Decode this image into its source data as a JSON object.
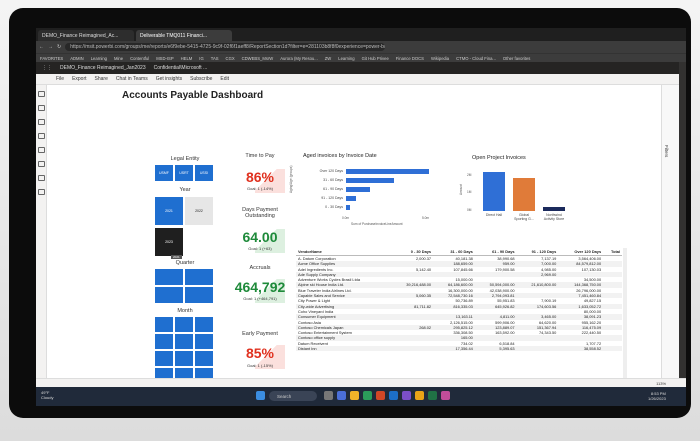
{
  "browser": {
    "tabs": [
      "DEMO_Finance Reimagined_Ac...",
      "Deliverable TMQ011 Financi..."
    ],
    "url": "https://msit.powerbi.com/groups/me/reports/e6f9ebe-5415-4725-9c9f-02f6f1aeff8/ReportSection1d?filter=e=281103b8f8f0experience=power-bi",
    "favorites": [
      "FAVORITES",
      "ADMIN",
      "Learning",
      "Mine",
      "Contentful",
      "MSD-ISP",
      "HELM",
      "IG",
      "TAS",
      "CGX",
      "CDWEBS_MsrW",
      "Aurora (My Resou...",
      "ZW",
      "Learning",
      "Git Hub Privee",
      "Finance DOCS",
      "Wikipedia",
      "CTMO - Cloud Fina...",
      "Other favorites"
    ]
  },
  "pbi": {
    "app_title": "DEMO_Finance Reimagined_Jan2023",
    "confidential": "Confidential\\Microsoft ...",
    "toolbar": [
      "File",
      "Export",
      "Share",
      "Chat in Teams",
      "Get insights",
      "Subscribe",
      "Edit"
    ],
    "filters_label": "Filters"
  },
  "dashboard": {
    "title": "Accounts Payable Dashboard",
    "legal_entity": {
      "label": "Legal Entity",
      "items": [
        "USMF",
        "USRT",
        "USSI"
      ]
    },
    "year": {
      "label": "Year",
      "items": [
        "2021",
        "2022",
        "2023"
      ],
      "tooltip": "2021"
    },
    "quarter": {
      "label": "Quarter"
    },
    "month": {
      "label": "Month"
    },
    "kpis": [
      {
        "title": "Time to Pay",
        "value": "86%",
        "goal": "Goal: 1 (-14%)",
        "color": "#e0301e",
        "bg": "#fbe0dd"
      },
      {
        "title": "Days Payment Outstanding",
        "value": "64.00",
        "goal": "Goal: 1 (+63)",
        "color": "#1e8a3a",
        "bg": "#ddf0e0"
      },
      {
        "title": "Accruals",
        "value": "464,792",
        "goal": "Goal: 1 (+464,791)",
        "color": "#1e8a3a",
        "bg": "#ddf0e0"
      },
      {
        "title": "Early Payment",
        "value": "85%",
        "goal": "Goal: 1 (-15%)",
        "color": "#e0301e",
        "bg": "#fbe0dd"
      }
    ]
  },
  "colors": {
    "accent": "#1f6fd0",
    "bar_blue": "#2f6fd6",
    "bar_orange": "#e07b39",
    "bar_navy": "#1b2a5c"
  },
  "chart_data": [
    {
      "type": "bar",
      "title": "Aged invoices by Invoice Date",
      "categories": [
        "Over 120 Days",
        "31 - 60 Days",
        "61 - 90 Days",
        "91 - 120 Days",
        "0 - 30 Days"
      ],
      "values": [
        5.2,
        3.0,
        1.5,
        0.6,
        0.25
      ],
      "xlabel": "Sum of PurchaseInvoiceLineAmount",
      "ylabel": "Aging/Age (groups)",
      "xticks": [
        "0.0m",
        "5.0m"
      ],
      "xlim": [
        0,
        6
      ]
    },
    {
      "type": "bar",
      "title": "Open Project Invoices",
      "categories": [
        "Direct Hall",
        "Global Sporting G...",
        "Northwind Activity Store"
      ],
      "values": [
        2.2,
        1.9,
        0.2
      ],
      "ylabel": "Amount",
      "yticks": [
        "0M",
        "1M",
        "2M"
      ],
      "ylim": [
        0,
        2.5
      ]
    }
  ],
  "table": {
    "headers": [
      "VendorName",
      "0 - 30 Days",
      "31 - 60 Days",
      "61 - 90 Days",
      "91 - 120 Days",
      "Over 120 Days",
      "Total"
    ],
    "rows": [
      [
        "A. Datum Corporation",
        "2,000.37",
        "40,181.38",
        "38,990.68",
        "7,137.19",
        "3,564,406.00",
        ""
      ],
      [
        "Acme Office Supplies",
        "",
        "188,659.00",
        "959.00",
        "7,000.00",
        "84,579,812.00",
        ""
      ],
      [
        "Adel Ingredients Inc.",
        "5,142.40",
        "107,845.66",
        "179,900.58",
        "4,985.00",
        "107,130.03",
        ""
      ],
      [
        "Ade Supply Company",
        "",
        "",
        "",
        "2,969.00",
        "",
        ""
      ],
      [
        "Adventure Works Cycles Brasil Ltda",
        "",
        "15,000.00",
        "",
        "",
        "34,500.00",
        ""
      ],
      [
        "Alpine ski House India Ltd.",
        "39,216,488.00",
        "64,186,600.00",
        "50,594,000.00",
        "21,610,800.00",
        "144,368,750.00",
        ""
      ],
      [
        "Blue Traveler India Airlines Ltd.",
        "",
        "16,300,000.00",
        "42,038,900.00",
        "",
        "26,796,000.00",
        ""
      ],
      [
        "Capable Sales and Service",
        "5,060.35",
        "72,548,730.16",
        "2,794,093.81",
        "",
        "7,451,460.84",
        ""
      ],
      [
        "City Power & Light",
        "",
        "50,736.89",
        "55,951.83",
        "7,900.19",
        "49,827.15",
        ""
      ],
      [
        "City-wide Advertising",
        "81,711.82",
        "816,335.03",
        "645,926.82",
        "174,603.56",
        "1,633,052.72",
        ""
      ],
      [
        "Coho Vineyard India",
        "",
        "",
        "",
        "",
        "80,000.00",
        ""
      ],
      [
        "Consumer Equipment",
        "",
        "13,163.11",
        "4,811.00",
        "3,465.00",
        "38,091.23",
        ""
      ],
      [
        "Contoso Asia",
        "",
        "2,126,515.00",
        "599,906.00",
        "64,620.00",
        "955,162.20",
        ""
      ],
      [
        "Contoso Chemicals Japan",
        "268.02",
        "295,825.12",
        "123,889.07",
        "151,367.94",
        "116,475.09",
        ""
      ],
      [
        "Contoso Entertainment System",
        "",
        "336,308.50",
        "163,592.00",
        "74,343.50",
        "222,440.50",
        ""
      ],
      [
        "Contoso office supply",
        "",
        "165.00",
        "",
        "",
        "",
        ""
      ],
      [
        "Datum Receivent",
        "",
        "734.02",
        "6,518.84",
        "",
        "1,707.72",
        ""
      ],
      [
        "Distant Inn",
        "",
        "17,356.44",
        "5,395.63",
        "",
        "38,558.52",
        ""
      ]
    ]
  },
  "statusbar": {
    "zoom": "113%"
  },
  "taskbar": {
    "weather_temp": "49°F",
    "weather_desc": "Cloudy",
    "search": "Search",
    "time": "8:53 PM",
    "date": "1/26/2023"
  }
}
